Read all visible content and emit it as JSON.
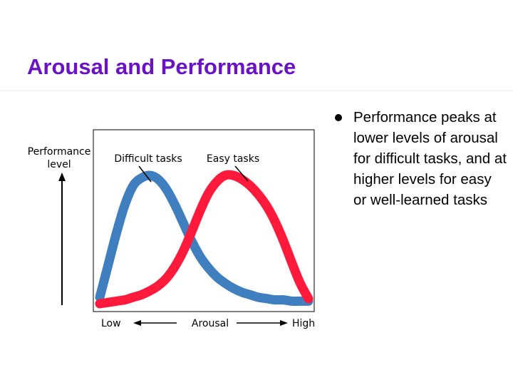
{
  "slide": {
    "title": "Arousal and Performance",
    "bullet": "Performance peaks at lower levels of arousal for difficult tasks, and at higher levels for easy or well-learned tasks"
  },
  "chart_data": {
    "type": "line",
    "ylabel": "Performance level",
    "xlabel": "Arousal",
    "x_tick_labels": {
      "low": "Low",
      "high": "High"
    },
    "xlim": [
      0,
      1
    ],
    "ylim": [
      0,
      1
    ],
    "grid": false,
    "series": [
      {
        "name": "Difficult tasks",
        "color": "#3f7fc0",
        "x": [
          0.0,
          0.04,
          0.08,
          0.12,
          0.16,
          0.2,
          0.24,
          0.28,
          0.32,
          0.36,
          0.4,
          0.44,
          0.48,
          0.52,
          0.56,
          0.6,
          0.64,
          0.68,
          0.72,
          0.76,
          0.8,
          0.84,
          0.88,
          0.92,
          0.96,
          1.0
        ],
        "y": [
          0.05,
          0.3,
          0.55,
          0.77,
          0.92,
          0.98,
          1.0,
          0.97,
          0.89,
          0.77,
          0.63,
          0.49,
          0.37,
          0.28,
          0.21,
          0.16,
          0.12,
          0.09,
          0.07,
          0.05,
          0.04,
          0.03,
          0.03,
          0.02,
          0.02,
          0.02
        ]
      },
      {
        "name": "Easy tasks",
        "color": "#ff1a3c",
        "x": [
          0.0,
          0.04,
          0.08,
          0.12,
          0.16,
          0.2,
          0.24,
          0.28,
          0.32,
          0.36,
          0.4,
          0.44,
          0.48,
          0.52,
          0.56,
          0.6,
          0.64,
          0.68,
          0.72,
          0.76,
          0.8,
          0.84,
          0.88,
          0.92,
          0.96,
          1.0
        ],
        "y": [
          0.0,
          0.01,
          0.02,
          0.03,
          0.05,
          0.07,
          0.1,
          0.14,
          0.2,
          0.29,
          0.41,
          0.56,
          0.72,
          0.86,
          0.95,
          1.0,
          1.0,
          0.97,
          0.92,
          0.85,
          0.76,
          0.64,
          0.49,
          0.32,
          0.16,
          0.04
        ]
      }
    ],
    "annotations": [
      {
        "text": "Difficult tasks",
        "points_to_x": 0.24
      },
      {
        "text": "Easy tasks",
        "points_to_x": 0.68
      }
    ]
  }
}
